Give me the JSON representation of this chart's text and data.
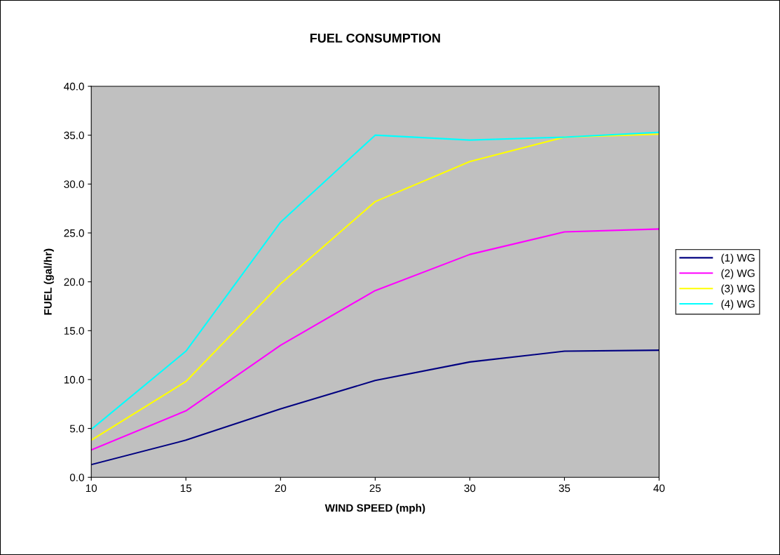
{
  "chart_data": {
    "type": "line",
    "title": "FUEL CONSUMPTION",
    "xlabel": "WIND SPEED (mph)",
    "ylabel": "FUEL (gal/hr)",
    "x": [
      10,
      15,
      20,
      25,
      30,
      35,
      40
    ],
    "series": [
      {
        "name": "(1) WG",
        "color": "#000080",
        "values": [
          1.3,
          3.8,
          7.0,
          9.9,
          11.8,
          12.9,
          13.0
        ]
      },
      {
        "name": "(2) WG",
        "color": "#ff00ff",
        "values": [
          2.8,
          6.8,
          13.5,
          19.1,
          22.8,
          25.1,
          25.4
        ]
      },
      {
        "name": "(3) WG",
        "color": "#ffff00",
        "values": [
          3.8,
          9.8,
          19.8,
          28.2,
          32.3,
          34.8,
          35.1
        ]
      },
      {
        "name": "(4) WG",
        "color": "#00ffff",
        "values": [
          4.9,
          12.9,
          26.1,
          35.0,
          34.5,
          34.8,
          35.3
        ]
      }
    ],
    "xlim": [
      10,
      40
    ],
    "xticks": [
      10,
      15,
      20,
      25,
      30,
      35,
      40
    ],
    "ylim": [
      0,
      40
    ],
    "yticks": [
      {
        "value": 0,
        "label": "0.0"
      },
      {
        "value": 5,
        "label": "5.0"
      },
      {
        "value": 10,
        "label": "10.0"
      },
      {
        "value": 15,
        "label": "15.0"
      },
      {
        "value": 20,
        "label": "20.0"
      },
      {
        "value": 25,
        "label": "25.0"
      },
      {
        "value": 30,
        "label": "30.0"
      },
      {
        "value": 35,
        "label": "35.0"
      },
      {
        "value": 40,
        "label": "40.0"
      }
    ],
    "grid": false,
    "legend": "right",
    "marker": "none",
    "line_style": "solid"
  }
}
